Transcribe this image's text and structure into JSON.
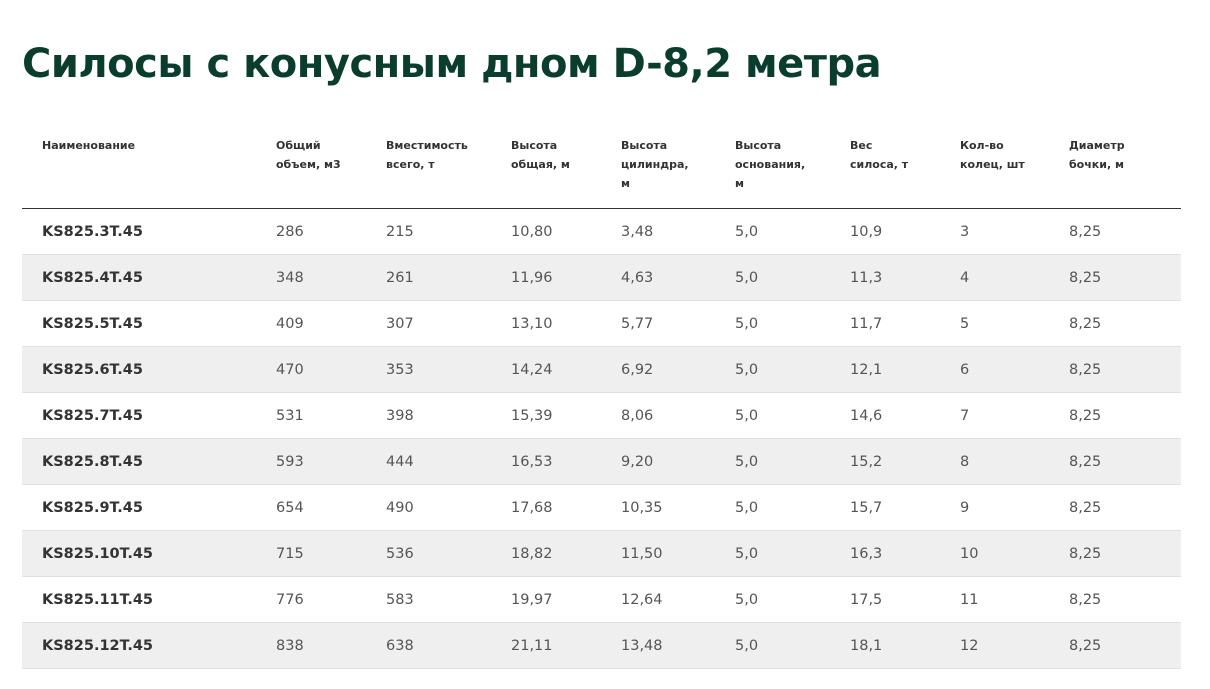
{
  "title": "Силосы с конусным дном D-8,2 метра",
  "table": {
    "headers": [
      "Наименование",
      "Общий объем, м3",
      "Вместимость всего, т",
      "Высота общая, м",
      "Высота цилиндра, м",
      "Высота основания, м",
      "Вес силоса, т",
      "Кол-во колец, шт",
      "Диаметр бочки, м"
    ],
    "rows": [
      [
        "KS825.3T.45",
        "286",
        "215",
        "10,80",
        "3,48",
        "5,0",
        "10,9",
        "3",
        "8,25"
      ],
      [
        "KS825.4T.45",
        "348",
        "261",
        "11,96",
        "4,63",
        "5,0",
        "11,3",
        "4",
        "8,25"
      ],
      [
        "KS825.5T.45",
        "409",
        "307",
        "13,10",
        "5,77",
        "5,0",
        "11,7",
        "5",
        "8,25"
      ],
      [
        "KS825.6T.45",
        "470",
        "353",
        "14,24",
        "6,92",
        "5,0",
        "12,1",
        "6",
        "8,25"
      ],
      [
        "KS825.7T.45",
        "531",
        "398",
        "15,39",
        "8,06",
        "5,0",
        "14,6",
        "7",
        "8,25"
      ],
      [
        "KS825.8T.45",
        "593",
        "444",
        "16,53",
        "9,20",
        "5,0",
        "15,2",
        "8",
        "8,25"
      ],
      [
        "KS825.9T.45",
        "654",
        "490",
        "17,68",
        "10,35",
        "5,0",
        "15,7",
        "9",
        "8,25"
      ],
      [
        "KS825.10T.45",
        "715",
        "536",
        "18,82",
        "11,50",
        "5,0",
        "16,3",
        "10",
        "8,25"
      ],
      [
        "KS825.11T.45",
        "776",
        "583",
        "19,97",
        "12,64",
        "5,0",
        "17,5",
        "11",
        "8,25"
      ],
      [
        "KS825.12T.45",
        "838",
        "638",
        "21,11",
        "13,48",
        "5,0",
        "18,1",
        "12",
        "8,25"
      ]
    ]
  }
}
